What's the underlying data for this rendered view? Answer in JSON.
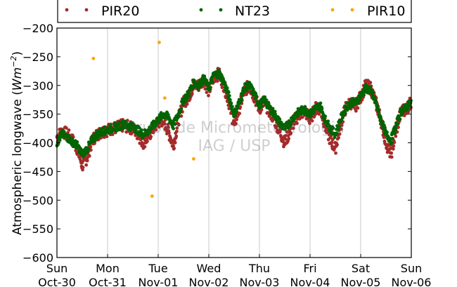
{
  "chart_data": {
    "type": "scatter",
    "title": "",
    "xlabel": "",
    "ylabel": "Atmospheric longwave (Wm⁻²)",
    "ylabel_text": "Atmospheric longwave (",
    "ylabel_unit_base": "Wm",
    "ylabel_unit_exp": "−2",
    "ylabel_close": ")",
    "ylim": [
      -600,
      -200
    ],
    "xlim": [
      "2016-10-30",
      "2016-11-06"
    ],
    "yticks": [
      "−600",
      "−550",
      "−500",
      "−450",
      "−400",
      "−350",
      "−300",
      "−250",
      "−200"
    ],
    "ytick_values": [
      -600,
      -550,
      -500,
      -450,
      -400,
      -350,
      -300,
      -250,
      -200
    ],
    "xticks": [
      {
        "day": "Sun",
        "date": "Oct-30"
      },
      {
        "day": "Mon",
        "date": "Oct-31"
      },
      {
        "day": "Tue",
        "date": "Nov-01"
      },
      {
        "day": "Wed",
        "date": "Nov-02"
      },
      {
        "day": "Thu",
        "date": "Nov-03"
      },
      {
        "day": "Fri",
        "date": "Nov-04"
      },
      {
        "day": "Sat",
        "date": "Nov-05"
      },
      {
        "day": "Sun",
        "date": "Nov-06"
      }
    ],
    "grid": "vertical",
    "legend_position": "top",
    "watermark": [
      "Grupo de Micrometeorologia",
      "IAG / USP"
    ],
    "series": [
      {
        "name": "PIR20",
        "color": "#a52a2a",
        "x_days": [
          0.0,
          0.1,
          0.2,
          0.3,
          0.4,
          0.5,
          0.6,
          0.7,
          0.8,
          0.9,
          1.0,
          1.1,
          1.2,
          1.3,
          1.4,
          1.5,
          1.6,
          1.7,
          1.8,
          1.9,
          2.0,
          2.1,
          2.2,
          2.3,
          2.4,
          2.5,
          2.6,
          2.7,
          2.8,
          2.9,
          3.0,
          3.1,
          3.2,
          3.3,
          3.4,
          3.5,
          3.6,
          3.7,
          3.8,
          3.9,
          4.0,
          4.1,
          4.2,
          4.3,
          4.4,
          4.5,
          4.6,
          4.7,
          4.8,
          4.9,
          5.0,
          5.1,
          5.2,
          5.3,
          5.4,
          5.5,
          5.6,
          5.7,
          5.8,
          5.9,
          6.0,
          6.1,
          6.2,
          6.3,
          6.4,
          6.5,
          6.6,
          6.7,
          6.8,
          6.9,
          7.0
        ],
        "y": [
          -390,
          -380,
          -385,
          -395,
          -410,
          -440,
          -425,
          -395,
          -385,
          -380,
          -378,
          -375,
          -373,
          -370,
          -372,
          -375,
          -385,
          -400,
          -390,
          -375,
          -365,
          -360,
          -380,
          -405,
          -360,
          -330,
          -320,
          -300,
          -300,
          -290,
          -310,
          -285,
          -280,
          -300,
          -330,
          -370,
          -340,
          -310,
          -300,
          -320,
          -340,
          -330,
          -345,
          -360,
          -380,
          -400,
          -380,
          -360,
          -350,
          -345,
          -360,
          -340,
          -340,
          -370,
          -395,
          -410,
          -370,
          -340,
          -330,
          -335,
          -320,
          -300,
          -305,
          -330,
          -360,
          -400,
          -420,
          -380,
          -345,
          -340,
          -330
        ]
      },
      {
        "name": "NT23",
        "color": "#006400",
        "x_days": [
          0.0,
          0.1,
          0.2,
          0.3,
          0.4,
          0.5,
          0.6,
          0.7,
          0.8,
          0.9,
          1.0,
          1.1,
          1.2,
          1.3,
          1.4,
          1.5,
          1.6,
          1.7,
          1.8,
          1.9,
          2.0,
          2.1,
          2.2,
          2.3,
          2.4,
          2.5,
          2.6,
          2.7,
          2.8,
          2.9,
          3.0,
          3.1,
          3.2,
          3.3,
          3.4,
          3.5,
          3.6,
          3.7,
          3.8,
          3.9,
          4.0,
          4.1,
          4.2,
          4.3,
          4.4,
          4.5,
          4.6,
          4.7,
          4.8,
          4.9,
          5.0,
          5.1,
          5.2,
          5.3,
          5.4,
          5.5,
          5.6,
          5.7,
          5.8,
          5.9,
          6.0,
          6.1,
          6.2,
          6.3,
          6.4,
          6.5,
          6.6,
          6.7,
          6.8,
          6.9,
          7.0
        ],
        "y": [
          -400,
          -385,
          -390,
          -398,
          -405,
          -420,
          -410,
          -395,
          -385,
          -380,
          -378,
          -374,
          -372,
          -368,
          -370,
          -372,
          -378,
          -385,
          -380,
          -370,
          -360,
          -350,
          -355,
          -370,
          -350,
          -325,
          -315,
          -295,
          -300,
          -288,
          -305,
          -282,
          -278,
          -295,
          -320,
          -350,
          -330,
          -305,
          -300,
          -315,
          -335,
          -325,
          -340,
          -350,
          -365,
          -375,
          -365,
          -352,
          -345,
          -342,
          -350,
          -340,
          -335,
          -360,
          -375,
          -385,
          -360,
          -340,
          -330,
          -330,
          -318,
          -305,
          -310,
          -330,
          -360,
          -385,
          -395,
          -370,
          -345,
          -338,
          -330
        ]
      },
      {
        "name": "PIR10",
        "color": "#ffa500",
        "x_days": [
          0.72,
          1.88,
          2.02,
          2.13,
          2.7
        ],
        "y": [
          -253,
          -493,
          -225,
          -322,
          -428
        ]
      }
    ]
  }
}
